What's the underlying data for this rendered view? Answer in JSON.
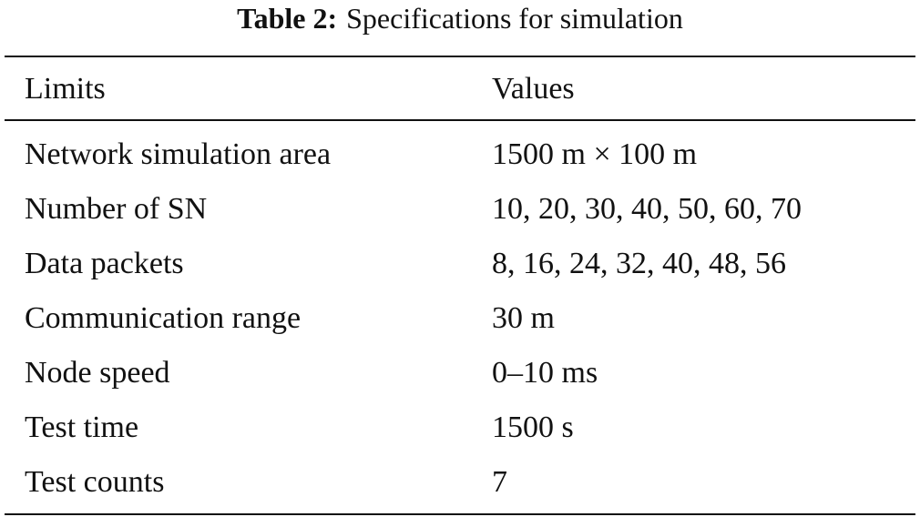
{
  "caption": {
    "label": "Table 2:",
    "text": "Specifications for simulation"
  },
  "table": {
    "header": [
      "Limits",
      "Values"
    ],
    "rows": [
      [
        "Network simulation area",
        "1500 m × 100 m"
      ],
      [
        "Number of SN",
        "10, 20, 30, 40, 50, 60, 70"
      ],
      [
        "Data packets",
        "8, 16, 24, 32, 40, 48, 56"
      ],
      [
        "Communication range",
        "30 m"
      ],
      [
        "Node speed",
        "0–10 ms"
      ],
      [
        "Test time",
        "1500 s"
      ],
      [
        "Test counts",
        "7"
      ]
    ]
  }
}
